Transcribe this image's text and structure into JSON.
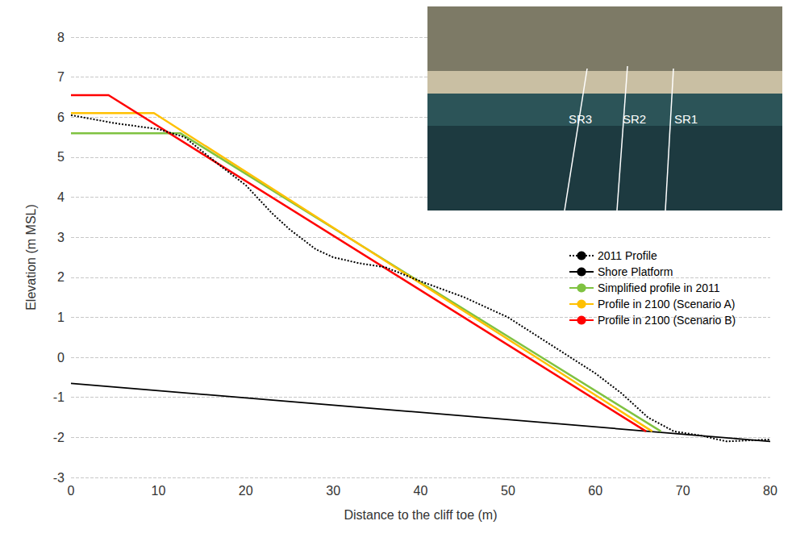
{
  "chart_data": {
    "type": "line",
    "x_label": "Distance to the cliff toe (m)",
    "y_label": "Elevation (m MSL)",
    "xlim": [
      0,
      80
    ],
    "xticks": [
      0,
      10,
      20,
      30,
      40,
      50,
      60,
      70,
      80
    ],
    "ylim": [
      -3,
      8
    ],
    "yticks": [
      -3,
      -2,
      -1,
      0,
      1,
      2,
      3,
      4,
      5,
      6,
      7,
      8
    ],
    "grid": true,
    "legend": "right",
    "annotations": [
      "SR3",
      "SR2",
      "SR1"
    ],
    "series": [
      {
        "name": "2011 Profile",
        "color": "#000000",
        "line_style": "dotted",
        "x": [
          0,
          5,
          10,
          13,
          17,
          20,
          23,
          25,
          28,
          30,
          33,
          36,
          40,
          45,
          50,
          55,
          60,
          63,
          66,
          69,
          72,
          75,
          80
        ],
        "values": [
          6.05,
          5.85,
          5.7,
          5.5,
          4.8,
          4.3,
          3.6,
          3.2,
          2.7,
          2.5,
          2.35,
          2.25,
          1.9,
          1.5,
          1.0,
          0.3,
          -0.4,
          -0.9,
          -1.5,
          -1.85,
          -1.95,
          -2.1,
          -2.05
        ]
      },
      {
        "name": "Shore Platform",
        "color": "#000000",
        "line_style": "solid",
        "x": [
          0,
          80
        ],
        "values": [
          -0.65,
          -2.1
        ]
      },
      {
        "name": "Simplified profile in 2011",
        "color": "#7fc241",
        "line_style": "solid",
        "x": [
          0,
          12.5,
          67.5
        ],
        "values": [
          5.6,
          5.6,
          -1.85
        ]
      },
      {
        "name": "Profile in 2100 (Scenario A)",
        "color": "#ffc000",
        "line_style": "solid",
        "x": [
          0,
          9.5,
          66.5
        ],
        "values": [
          6.1,
          6.1,
          -1.85
        ]
      },
      {
        "name": "Profile in 2100 (Scenario B)",
        "color": "#ff0000",
        "line_style": "solid",
        "x": [
          0,
          4.3,
          65.8
        ],
        "values": [
          6.55,
          6.55,
          -1.85
        ]
      }
    ]
  }
}
